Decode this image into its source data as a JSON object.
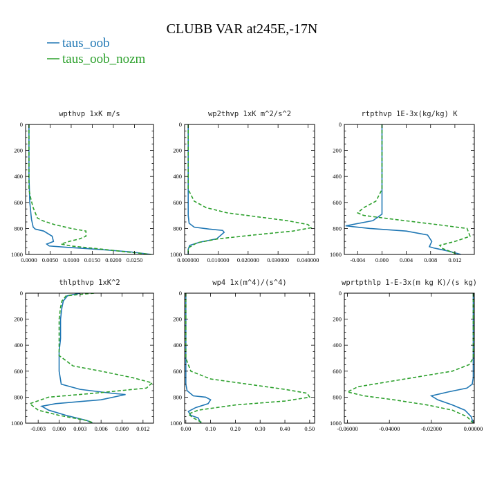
{
  "title": "CLUBB VAR at245E,-17N",
  "legend": [
    {
      "name": "taus_oob",
      "color": "#1f77b4"
    },
    {
      "name": "taus_oob_nozm",
      "color": "#2ca02c"
    }
  ],
  "chart_data": [
    {
      "type": "line",
      "title": "wpthvp   1xK m/s",
      "xlim": [
        -0.0008,
        0.0295
      ],
      "xticks": [
        "0.0000",
        "0.0050",
        "0.0100",
        "0.0150",
        "0.0200",
        "0.0250"
      ],
      "xtick_values": [
        0.0,
        0.005,
        0.01,
        0.015,
        0.02,
        0.025
      ],
      "ylim": [
        0,
        1000
      ],
      "yticks": [
        "0",
        "200",
        "400",
        "600",
        "800",
        "1000"
      ],
      "ytick_values": [
        0,
        200,
        400,
        600,
        800,
        1000
      ],
      "series": [
        {
          "name": "taus_oob",
          "color": "#1f77b4",
          "dash": "",
          "x": [
            0,
            0,
            0.0002,
            0.0005,
            0.0006,
            0.0008,
            0.001,
            0.0015,
            0.0035,
            0.0055,
            0.0058,
            0.0042,
            0.0048,
            0.009,
            0.016,
            0.024,
            0.029
          ],
          "y": [
            0,
            400,
            600,
            700,
            730,
            760,
            790,
            805,
            820,
            860,
            900,
            920,
            935,
            945,
            960,
            980,
            1000
          ]
        },
        {
          "name": "taus_oob_nozm",
          "color": "#2ca02c",
          "dash": "5,3",
          "x": [
            0,
            0,
            0.0005,
            0.001,
            0.0015,
            0.002,
            0.0032,
            0.006,
            0.01,
            0.0135,
            0.0135,
            0.012,
            0.0095,
            0.0076,
            0.01,
            0.016,
            0.023,
            0.029
          ],
          "y": [
            0,
            500,
            580,
            640,
            680,
            720,
            740,
            770,
            800,
            820,
            860,
            880,
            900,
            920,
            935,
            955,
            980,
            1000
          ]
        }
      ]
    },
    {
      "type": "line",
      "title": "wp2thvp   1xK m^2/s^2",
      "xlim": [
        -0.0012,
        0.0422
      ],
      "xticks": [
        "0.000000",
        "0.010000",
        "0.020000",
        "0.030000",
        "0.040000"
      ],
      "xtick_values": [
        0.0,
        0.01,
        0.02,
        0.03,
        0.04
      ],
      "ylim": [
        0,
        1000
      ],
      "yticks": [
        "0",
        "200",
        "400",
        "600",
        "800",
        "1000"
      ],
      "ytick_values": [
        0,
        200,
        400,
        600,
        800,
        1000
      ],
      "series": [
        {
          "name": "taus_oob",
          "color": "#1f77b4",
          "dash": "",
          "x": [
            0,
            0,
            0.0003,
            0.002,
            0.007,
            0.0115,
            0.012,
            0.0095,
            0.004,
            0.0005,
            0,
            0
          ],
          "y": [
            0,
            700,
            760,
            790,
            805,
            815,
            830,
            880,
            905,
            930,
            960,
            1000
          ]
        },
        {
          "name": "taus_oob_nozm",
          "color": "#2ca02c",
          "dash": "5,3",
          "x": [
            0,
            0,
            0.002,
            0.006,
            0.013,
            0.023,
            0.033,
            0.04,
            0.041,
            0.035,
            0.022,
            0.01,
            0.003,
            0,
            0
          ],
          "y": [
            0,
            500,
            590,
            640,
            680,
            710,
            740,
            770,
            795,
            820,
            850,
            880,
            910,
            950,
            1000
          ]
        }
      ]
    },
    {
      "type": "line",
      "title": "rtpthvp   1E-3x(kg/kg) K",
      "xlim": [
        -0.0062,
        0.0152
      ],
      "xticks": [
        "-0.004",
        "0.000",
        "0.004",
        "0.008",
        "0.012"
      ],
      "xtick_values": [
        -0.004,
        0.0,
        0.004,
        0.008,
        0.012
      ],
      "ylim": [
        0,
        1000
      ],
      "yticks": [
        "0",
        "200",
        "400",
        "600",
        "800",
        "1000"
      ],
      "ytick_values": [
        0,
        200,
        400,
        600,
        800,
        1000
      ],
      "series": [
        {
          "name": "taus_oob",
          "color": "#1f77b4",
          "dash": "",
          "x": [
            0,
            0,
            0,
            -0.0015,
            -0.006,
            -0.002,
            0.004,
            0.0075,
            0.0082,
            0.0078,
            0.0085,
            0.011,
            0.013
          ],
          "y": [
            0,
            500,
            690,
            740,
            780,
            800,
            820,
            850,
            900,
            940,
            950,
            975,
            1000
          ]
        },
        {
          "name": "taus_oob_nozm",
          "color": "#2ca02c",
          "dash": "5,3",
          "x": [
            0,
            0,
            -0.001,
            -0.003,
            -0.004,
            -0.003,
            0.002,
            0.009,
            0.014,
            0.0145,
            0.012,
            0.0095,
            0.01,
            0.0125
          ],
          "y": [
            0,
            500,
            590,
            640,
            680,
            700,
            730,
            770,
            800,
            860,
            900,
            930,
            955,
            1000
          ]
        }
      ]
    },
    {
      "type": "line",
      "title": "thlpthvp   1xK^2",
      "xlim": [
        -0.0048,
        0.0135
      ],
      "xticks": [
        "-0.003",
        "0.000",
        "0.003",
        "0.006",
        "0.009",
        "0.012"
      ],
      "xtick_values": [
        -0.003,
        0.0,
        0.003,
        0.006,
        0.009,
        0.012
      ],
      "ylim": [
        0,
        1000
      ],
      "yticks": [
        "0",
        "200",
        "400",
        "600",
        "800",
        "1000"
      ],
      "ytick_values": [
        0,
        200,
        400,
        600,
        800,
        1000
      ],
      "series": [
        {
          "name": "taus_oob",
          "color": "#1f77b4",
          "dash": "",
          "x": [
            0.003,
            0.0012,
            0.0006,
            0.0004,
            0.0002,
            0.0002,
            0,
            0,
            0.0003,
            0.003,
            0.0075,
            0.0095,
            0.006,
            -0.0005,
            -0.0025,
            -0.0015,
            0.001,
            0.004,
            0.0048
          ],
          "y": [
            0,
            20,
            60,
            110,
            200,
            350,
            450,
            600,
            700,
            740,
            770,
            780,
            820,
            850,
            870,
            900,
            940,
            980,
            1000
          ]
        },
        {
          "name": "taus_oob_nozm",
          "color": "#2ca02c",
          "dash": "5,3",
          "x": [
            0.005,
            0.001,
            0.0004,
            0.0002,
            0,
            0,
            0.002,
            0.006,
            0.0105,
            0.0133,
            0.0125,
            0.005,
            -0.0015,
            -0.0042,
            -0.003,
            0,
            0.004,
            0.005
          ],
          "y": [
            0,
            20,
            60,
            110,
            200,
            480,
            560,
            600,
            650,
            690,
            730,
            770,
            800,
            850,
            900,
            940,
            980,
            1000
          ]
        }
      ]
    },
    {
      "type": "line",
      "title": "wp4   1x(m^4)/(s^4)",
      "xlim": [
        -0.005,
        0.52
      ],
      "xticks": [
        "0.00",
        "0.10",
        "0.20",
        "0.30",
        "0.40",
        "0.50"
      ],
      "xtick_values": [
        0.0,
        0.1,
        0.2,
        0.3,
        0.4,
        0.5
      ],
      "ylim": [
        0,
        1000
      ],
      "yticks": [
        "0",
        "200",
        "400",
        "600",
        "800",
        "1000"
      ],
      "ytick_values": [
        0,
        200,
        400,
        600,
        800,
        1000
      ],
      "series": [
        {
          "name": "taus_oob",
          "color": "#1f77b4",
          "dash": "",
          "x": [
            0,
            0,
            0.005,
            0.03,
            0.08,
            0.1,
            0.09,
            0.04,
            0.01,
            0.02,
            0.05,
            0.06
          ],
          "y": [
            0,
            700,
            750,
            790,
            800,
            820,
            850,
            880,
            910,
            940,
            960,
            1000
          ]
        },
        {
          "name": "taus_oob_nozm",
          "color": "#2ca02c",
          "dash": "5,3",
          "x": [
            0,
            0,
            0.02,
            0.1,
            0.25,
            0.4,
            0.49,
            0.5,
            0.4,
            0.2,
            0.05,
            0.01,
            0.03,
            0.07
          ],
          "y": [
            0,
            500,
            600,
            660,
            700,
            740,
            770,
            800,
            830,
            860,
            900,
            930,
            960,
            1000
          ]
        }
      ]
    },
    {
      "type": "line",
      "title": "wprtpthlp   1-E-3x(m kg K)/(s kg)",
      "xlim": [
        -0.0615,
        0.0005
      ],
      "xticks": [
        "-0.06000",
        "-0.04000",
        "-0.02000",
        "0.00000"
      ],
      "xtick_values": [
        -0.06,
        -0.04,
        -0.02,
        0.0
      ],
      "ylim": [
        0,
        1000
      ],
      "yticks": [
        "0",
        "200",
        "400",
        "600",
        "800",
        "1000"
      ],
      "ytick_values": [
        0,
        200,
        400,
        600,
        800,
        1000
      ],
      "series": [
        {
          "name": "taus_oob",
          "color": "#1f77b4",
          "dash": "",
          "x": [
            0,
            0,
            -0.0005,
            -0.003,
            -0.012,
            -0.02,
            -0.017,
            -0.01,
            -0.004,
            -0.001,
            0
          ],
          "y": [
            0,
            650,
            700,
            730,
            760,
            790,
            820,
            860,
            900,
            950,
            1000
          ]
        },
        {
          "name": "taus_oob_nozm",
          "color": "#2ca02c",
          "dash": "5,3",
          "x": [
            0,
            0,
            -0.002,
            -0.01,
            -0.025,
            -0.04,
            -0.055,
            -0.06,
            -0.052,
            -0.038,
            -0.022,
            -0.01,
            -0.003,
            0
          ],
          "y": [
            0,
            500,
            550,
            600,
            640,
            680,
            720,
            760,
            790,
            820,
            860,
            900,
            950,
            1000
          ]
        }
      ]
    }
  ]
}
